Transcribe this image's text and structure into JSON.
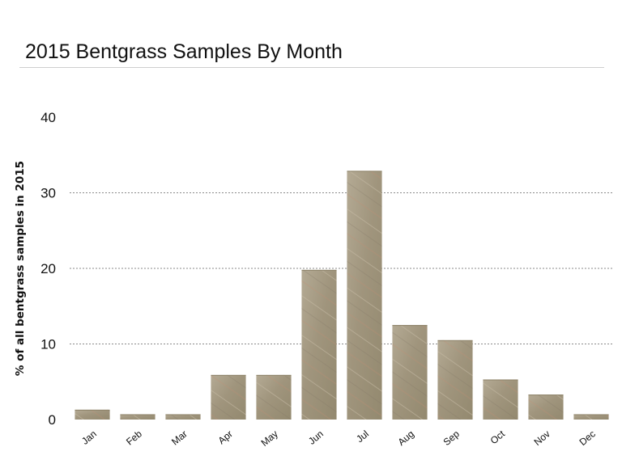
{
  "chart_data": {
    "type": "bar",
    "title": "2015 Bentgrass Samples By Month",
    "xlabel": "",
    "ylabel": "% of all bentgrass samples in 2015",
    "categories": [
      "Jan",
      "Feb",
      "Mar",
      "Apr",
      "May",
      "Jun",
      "Jul",
      "Aug",
      "Sep",
      "Oct",
      "Nov",
      "Dec"
    ],
    "values": [
      1.3,
      0.7,
      0.7,
      5.9,
      5.9,
      19.8,
      32.9,
      12.5,
      10.5,
      5.3,
      3.3,
      0.7
    ],
    "ylim": [
      0,
      40
    ],
    "yticks": [
      0,
      10,
      20,
      30,
      40
    ],
    "grid": true,
    "legend": "none",
    "bar_color": "#a49982",
    "grid_color": "#8a8a8a"
  }
}
